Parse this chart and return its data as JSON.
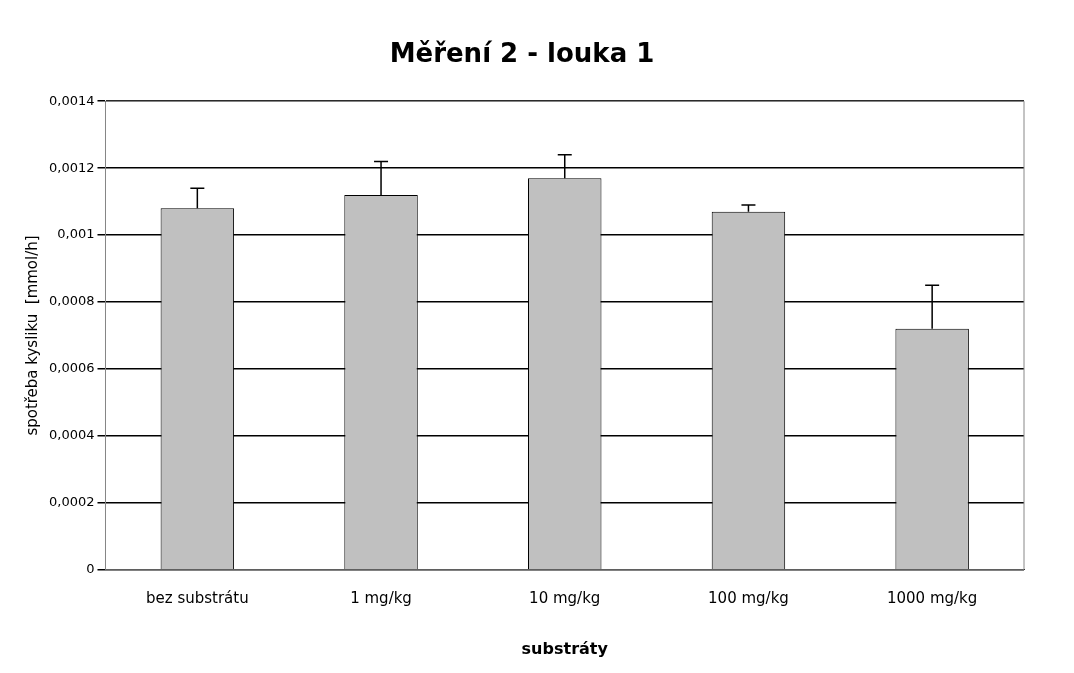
{
  "chart_data": {
    "type": "bar",
    "title": "Měření 2 - louka 1",
    "xlabel": "substráty",
    "ylabel": "spotřeba kysliku  [mmol/h]",
    "categories": [
      "bez substrátu",
      "1 mg/kg",
      "10 mg/kg",
      "100 mg/kg",
      "1000 mg/kg"
    ],
    "values": [
      0.00108,
      0.00112,
      0.00117,
      0.00107,
      0.00072
    ],
    "errors": [
      [
        0.00108,
        0.00114
      ],
      [
        0.00112,
        0.00122
      ],
      [
        0.00117,
        0.00124
      ],
      [
        0.00107,
        0.00109
      ],
      [
        0.00072,
        0.00085
      ]
    ],
    "color": "#c0c0c0",
    "ylim": [
      0,
      0.0014
    ],
    "yticks": [
      {
        "value": 0,
        "label": "0"
      },
      {
        "value": 0.0002,
        "label": "0,0002"
      },
      {
        "value": 0.0004,
        "label": "0,0004"
      },
      {
        "value": 0.0006,
        "label": "0,0006"
      },
      {
        "value": 0.0008,
        "label": "0,0008"
      },
      {
        "value": 0.001,
        "label": "0,001"
      },
      {
        "value": 0.0012,
        "label": "0,0012"
      },
      {
        "value": 0.0014,
        "label": "0,0014"
      }
    ],
    "grid": "y",
    "legend": false
  }
}
